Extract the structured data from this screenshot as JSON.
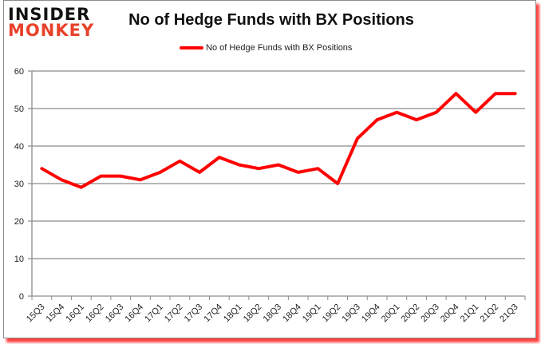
{
  "logo": {
    "line1": "INSIDER",
    "line2": "MONKEY"
  },
  "colors": {
    "series": "#ff0000",
    "grid": "#8c8c8c",
    "logo_accent": "#e8412a"
  },
  "chart_data": {
    "type": "line",
    "title": "No of Hedge Funds with BX Positions",
    "xlabel": "",
    "ylabel": "",
    "ylim": [
      0,
      60
    ],
    "yticks": [
      0,
      10,
      20,
      30,
      40,
      50,
      60
    ],
    "grid": true,
    "legend_position": "top",
    "categories": [
      "15Q3",
      "15Q4",
      "16Q1",
      "16Q2",
      "16Q3",
      "16Q4",
      "17Q1",
      "17Q2",
      "17Q3",
      "17Q4",
      "18Q1",
      "18Q2",
      "18Q3",
      "18Q4",
      "19Q1",
      "19Q2",
      "19Q3",
      "19Q4",
      "20Q1",
      "20Q2",
      "20Q3",
      "20Q4",
      "21Q1",
      "21Q2",
      "21Q3"
    ],
    "series": [
      {
        "name": "No of Hedge Funds with BX Positions",
        "values": [
          34,
          31,
          29,
          32,
          32,
          31,
          33,
          36,
          33,
          37,
          35,
          34,
          35,
          33,
          34,
          30,
          42,
          47,
          49,
          47,
          49,
          54,
          49,
          54,
          54
        ]
      }
    ]
  }
}
